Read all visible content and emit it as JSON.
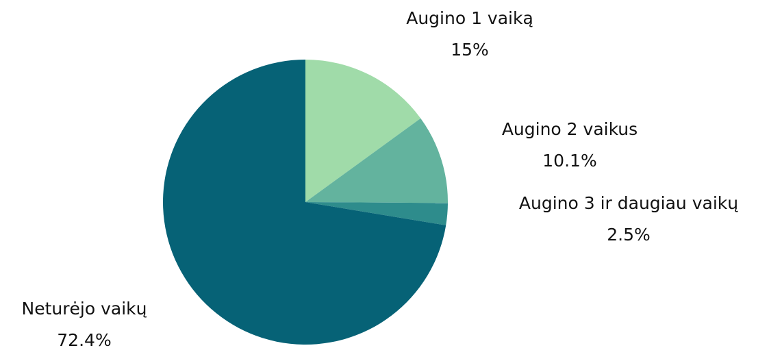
{
  "chart_data": {
    "type": "pie",
    "categories": [
      "Augino 1 vaiką",
      "Augino 2 vaikus",
      "Augino 3 ir daugiau vaikų",
      "Neturėjo vaikų"
    ],
    "values": [
      15,
      10.1,
      2.5,
      72.4
    ],
    "value_labels": [
      "15%",
      "10.1%",
      "2.5%",
      "72.4%"
    ],
    "colors": [
      "#a0dba9",
      "#63b39e",
      "#2e8c8c",
      "#066276"
    ]
  }
}
